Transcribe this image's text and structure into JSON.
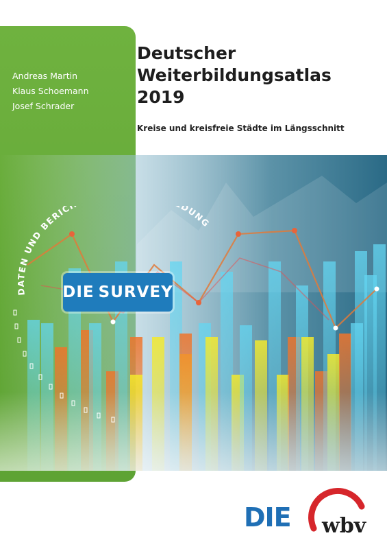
{
  "authors": [
    "Andreas Martin",
    "Klaus Schoemann",
    "Josef Schrader"
  ],
  "title_lines": [
    "Deutscher",
    "Weiterbildungsatlas",
    "2019"
  ],
  "subtitle": "Kreise und kreisfreie Städte im Längsschnitt",
  "series_label": "DATEN UND BERICHTE ZUR WEITERBILDUNG",
  "badge": {
    "die": "DIE",
    "survey": "SURVEY"
  },
  "publisher_logo_die": "DIE",
  "publisher_logo_wbv": "wbv",
  "colors": {
    "green": "#6fb23f",
    "badge_blue": "#1f7cbc",
    "die_blue": "#1f6fb5",
    "die_red": "#e23a2a",
    "wbv_red": "#d6262b"
  },
  "icons": [
    "survey-badge-icon",
    "die-logo-icon",
    "wbv-logo-icon"
  ]
}
